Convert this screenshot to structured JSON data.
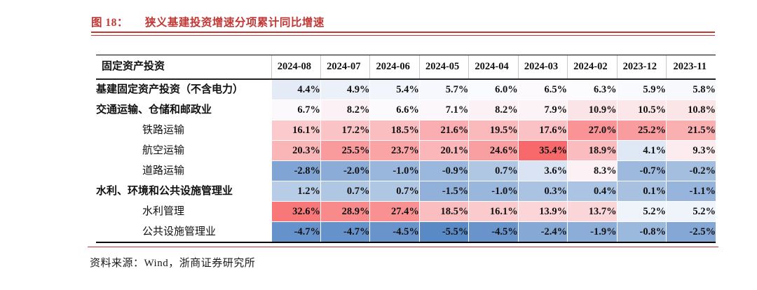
{
  "title": {
    "figure_label": "图 18：",
    "text": "狭义基建投资增速分项累计同比增速"
  },
  "source": "资料来源：Wind，浙商证券研究所",
  "colors": {
    "accent_red": "#C23634",
    "scale_min_color": "#5A8AC6",
    "scale_mid_color": "#FCFCFF",
    "scale_max_color": "#F8696B"
  },
  "chart_data": {
    "type": "heatmap",
    "title": "狭义基建投资增速分项累计同比增速",
    "corner_label": "固定资产投资",
    "value_format": "percent_one_decimal",
    "legend_position": "none",
    "grid": false,
    "color_scale": {
      "min": -5.5,
      "mid": 6.15,
      "max": 35.4
    },
    "columns": [
      "2024-08",
      "2024-07",
      "2024-06",
      "2024-05",
      "2024-04",
      "2024-03",
      "2024-02",
      "2023-12",
      "2023-11"
    ],
    "rows": [
      {
        "label": "基建固定资产投资（不含电力）",
        "indent": false,
        "values": [
          4.4,
          4.9,
          5.4,
          5.7,
          6.0,
          6.5,
          6.3,
          5.9,
          5.8
        ]
      },
      {
        "label": "交通运输、仓储和邮政业",
        "indent": false,
        "values": [
          6.7,
          8.2,
          6.6,
          7.1,
          8.2,
          7.9,
          10.9,
          10.5,
          10.8
        ]
      },
      {
        "label": "铁路运输",
        "indent": true,
        "values": [
          16.1,
          17.2,
          18.5,
          21.6,
          19.5,
          17.6,
          27.0,
          25.2,
          21.5
        ]
      },
      {
        "label": "航空运输",
        "indent": true,
        "values": [
          20.3,
          25.5,
          23.7,
          20.1,
          24.6,
          35.4,
          18.9,
          4.1,
          9.3
        ]
      },
      {
        "label": "道路运输",
        "indent": true,
        "values": [
          -2.8,
          -2.0,
          -1.0,
          -0.9,
          0.7,
          3.6,
          8.3,
          -0.7,
          -0.2
        ]
      },
      {
        "label": "水利、环境和公共设施管理业",
        "indent": false,
        "values": [
          1.2,
          0.7,
          0.7,
          -1.5,
          -1.0,
          0.3,
          0.4,
          0.1,
          -1.1
        ]
      },
      {
        "label": "水利管理",
        "indent": true,
        "values": [
          32.6,
          28.9,
          27.4,
          18.5,
          16.1,
          13.9,
          13.7,
          5.2,
          5.2
        ]
      },
      {
        "label": "公共设施管理业",
        "indent": true,
        "values": [
          -4.7,
          -4.7,
          -4.5,
          -5.5,
          -4.5,
          -2.4,
          -1.9,
          -0.8,
          -2.5
        ]
      }
    ]
  }
}
